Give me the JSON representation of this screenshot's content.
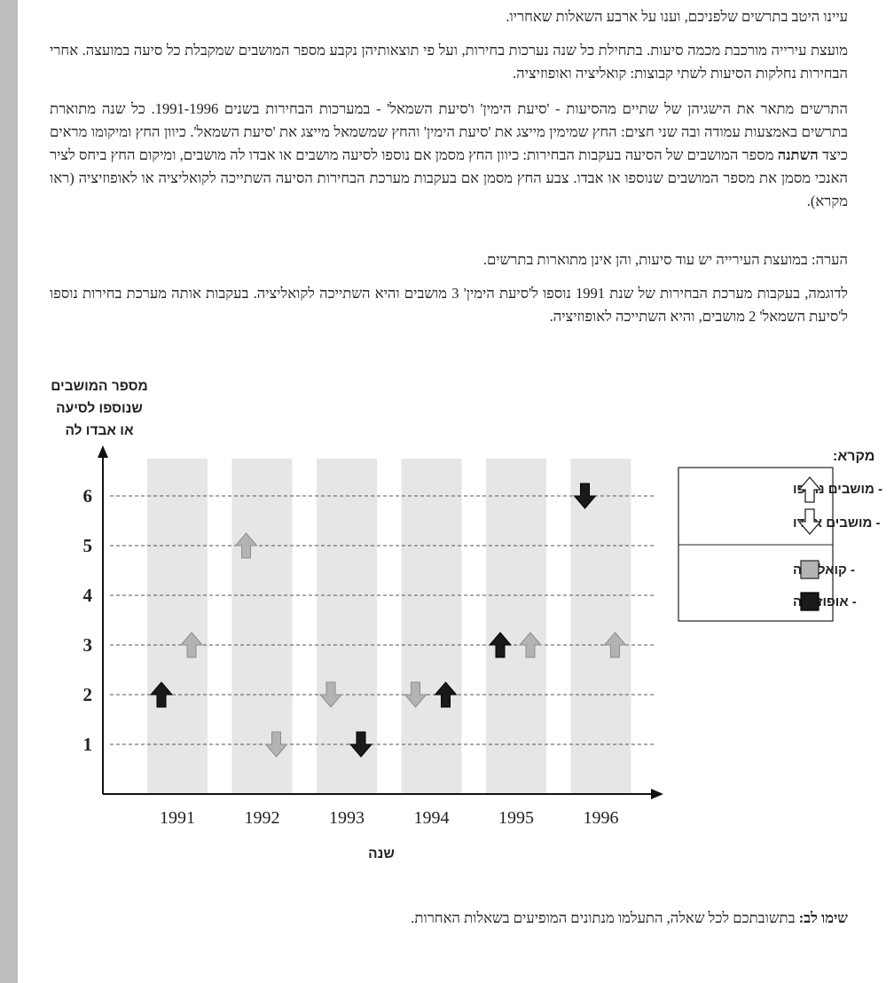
{
  "intro": "עיינו היטב בתרשים שלפניכם, וענו על ארבע השאלות שאחריו.",
  "paragraph_council": "מועצת עירייה מורכבת מכמה סיעות. בתחילת כל שנה נערכות בחירות, ועל פי תוצאותיהן נקבע מספר המושבים שמקבלת כל סיעה במועצה. אחרי הבחירות נחלקות הסיעות לשתי קבוצות: קואליציה ואופוזיציה.",
  "paragraph_chart_desc_before": "התרשים מתאר את הישגיהן של שתיים מהסיעות - 'סיעת הימין' ו'סיעת השמאל' - במערכות הבחירות בשנים 1991-1996. כל שנה מתוארת בתרשים באמצעות עמודה ובה שני חצים: החץ שמימין מייצג את 'סיעת הימין' והחץ שמשמאל מייצג את 'סיעת השמאל'. כיוון החץ ומיקומו מראים כיצד ",
  "paragraph_chart_desc_bold": "השתנה",
  "paragraph_chart_desc_after": " מספר המושבים של הסיעה בעקבות הבחירות: כיוון החץ מסמן אם נוספו לסיעה מושבים או אבדו לה מושבים, ומיקום החץ ביחס לציר האנכי מסמן את מספר המושבים שנוספו או אבדו. צבע החץ מסמן אם בעקבות מערכת הבחירות הסיעה השתייכה לקואליציה או לאופוזיציה (ראו מקרא).",
  "note": "הערה: במועצת העירייה יש עוד סיעות, והן אינן מתוארות בתרשים.",
  "example": "לדוגמה, בעקבות מערכת הבחירות של שנת 1991 נוספו ל'סיעת הימין' 3 מושבים והיא השתייכה לקואליציה. בעקבות אותה מערכת בחירות נוספו ל'סיעת השמאל' 2 מושבים, והיא השתייכה לאופוזיציה.",
  "footer_bold": "שימו לב:",
  "footer_text": " בתשובתכם לכל שאלה, התעלמו מנתונים המופיעים בשאלות האחרות.",
  "colors": {
    "coalition": "#b3b3b3",
    "opposition": "#1a1a1a",
    "column_bg": "#e6e6e6"
  },
  "chart_data": {
    "type": "scatter",
    "title": "",
    "ylabel_lines": [
      "מספר המושבים",
      "שנוספו לסיעה",
      "או אבדו לה"
    ],
    "xlabel": "שנה",
    "categories": [
      "1991",
      "1992",
      "1993",
      "1994",
      "1995",
      "1996"
    ],
    "yticks": [
      "1",
      "2",
      "3",
      "4",
      "5",
      "6"
    ],
    "ylim": [
      0,
      6
    ],
    "grid": "horizontal dashed",
    "series": [
      {
        "points": [
          {
            "year": "1991",
            "value": 3,
            "direction": "up",
            "group": "coalition"
          },
          {
            "year": "1992",
            "value": 1,
            "direction": "down",
            "group": "coalition"
          },
          {
            "year": "1993",
            "value": 1,
            "direction": "down",
            "group": "opposition"
          },
          {
            "year": "1994",
            "value": 2,
            "direction": "up",
            "group": "opposition"
          },
          {
            "year": "1995",
            "value": 3,
            "direction": "up",
            "group": "coalition"
          },
          {
            "year": "1996",
            "value": 3,
            "direction": "up",
            "group": "coalition"
          }
        ]
      },
      {
        "points": [
          {
            "year": "1991",
            "value": 2,
            "direction": "up",
            "group": "opposition"
          },
          {
            "year": "1992",
            "value": 5,
            "direction": "up",
            "group": "coalition"
          },
          {
            "year": "1993",
            "value": 2,
            "direction": "down",
            "group": "coalition"
          },
          {
            "year": "1994",
            "value": 2,
            "direction": "down",
            "group": "coalition"
          },
          {
            "year": "1995",
            "value": 3,
            "direction": "up",
            "group": "opposition"
          },
          {
            "year": "1996",
            "value": 6,
            "direction": "down",
            "group": "opposition"
          }
        ]
      }
    ],
    "legend": {
      "title": "מקרא:",
      "placement": "right",
      "items": [
        {
          "label": "- מושבים נוספו",
          "symbol": "arrow-up-outline"
        },
        {
          "label": "- מושבים אבדו",
          "symbol": "arrow-down-outline"
        },
        {
          "label": "- קואליציה",
          "symbol": "gray-square"
        },
        {
          "label": "- אופוזיציה",
          "symbol": "black-square"
        }
      ]
    }
  }
}
